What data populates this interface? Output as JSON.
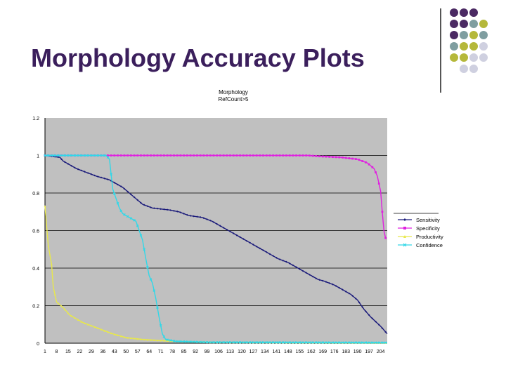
{
  "slide": {
    "title": "Morphology Accuracy Plots",
    "dot_colors": {
      "purple": "#4b2a63",
      "teal": "#7f9ea0",
      "olive": "#b5b83a",
      "lavender": "#cfd0e0"
    },
    "dot_grid": [
      [
        "purple",
        "purple",
        "purple",
        ""
      ],
      [
        "purple",
        "purple",
        "teal",
        "olive"
      ],
      [
        "purple",
        "teal",
        "olive",
        "teal"
      ],
      [
        "teal",
        "olive",
        "olive",
        "lavender"
      ],
      [
        "olive",
        "olive",
        "lavender",
        "lavender"
      ],
      [
        "",
        "lavender",
        "lavender",
        ""
      ]
    ]
  },
  "chart_data": {
    "type": "line",
    "title_lines": [
      "Morphology",
      "RefCount>5"
    ],
    "ylim": [
      0,
      1.2
    ],
    "yticks": [
      0,
      0.2,
      0.4,
      0.6,
      0.8,
      1,
      1.2
    ],
    "ytick_labels": [
      "0",
      "0.2",
      "0.4",
      "0.6",
      "0.8",
      "1",
      "1.2"
    ],
    "xlim": [
      1,
      208
    ],
    "xtick_labels": [
      "1",
      "8",
      "15",
      "22",
      "29",
      "36",
      "43",
      "50",
      "57",
      "64",
      "71",
      "78",
      "85",
      "92",
      "99",
      "106",
      "113",
      "120",
      "127",
      "134",
      "141",
      "148",
      "155",
      "162",
      "169",
      "176",
      "183",
      "190",
      "197",
      "204"
    ],
    "grid": "horizontal",
    "plot_bg": "#c0c0c0",
    "legend_position": "right",
    "series": [
      {
        "name": "Sensitivity",
        "color": "#1a1a7a",
        "marker": "diamond",
        "points": [
          [
            1,
            1
          ],
          [
            10,
            0.99
          ],
          [
            12,
            0.97
          ],
          [
            20,
            0.93
          ],
          [
            26,
            0.91
          ],
          [
            32,
            0.89
          ],
          [
            40,
            0.87
          ],
          [
            44,
            0.85
          ],
          [
            48,
            0.83
          ],
          [
            52,
            0.8
          ],
          [
            56,
            0.77
          ],
          [
            60,
            0.74
          ],
          [
            66,
            0.72
          ],
          [
            76,
            0.71
          ],
          [
            82,
            0.7
          ],
          [
            88,
            0.68
          ],
          [
            96,
            0.67
          ],
          [
            102,
            0.65
          ],
          [
            106,
            0.63
          ],
          [
            110,
            0.61
          ],
          [
            114,
            0.59
          ],
          [
            118,
            0.57
          ],
          [
            122,
            0.55
          ],
          [
            126,
            0.53
          ],
          [
            130,
            0.51
          ],
          [
            134,
            0.49
          ],
          [
            138,
            0.47
          ],
          [
            142,
            0.45
          ],
          [
            148,
            0.43
          ],
          [
            154,
            0.4
          ],
          [
            160,
            0.37
          ],
          [
            166,
            0.34
          ],
          [
            170,
            0.33
          ],
          [
            176,
            0.31
          ],
          [
            180,
            0.29
          ],
          [
            186,
            0.26
          ],
          [
            190,
            0.23
          ],
          [
            194,
            0.18
          ],
          [
            198,
            0.14
          ],
          [
            204,
            0.09
          ],
          [
            208,
            0.05
          ]
        ]
      },
      {
        "name": "Specificity",
        "color": "#e020e0",
        "marker": "square",
        "points": [
          [
            1,
            1
          ],
          [
            160,
            1
          ],
          [
            168,
            0.995
          ],
          [
            180,
            0.99
          ],
          [
            190,
            0.98
          ],
          [
            196,
            0.96
          ],
          [
            200,
            0.93
          ],
          [
            202,
            0.89
          ],
          [
            204,
            0.81
          ],
          [
            205,
            0.7
          ],
          [
            206,
            0.6
          ],
          [
            207,
            0.56
          ]
        ]
      },
      {
        "name": "Productivity",
        "color": "#e8e84a",
        "marker": "triangle",
        "points": [
          [
            1,
            0.73
          ],
          [
            3,
            0.52
          ],
          [
            5,
            0.42
          ],
          [
            6,
            0.3
          ],
          [
            8,
            0.22
          ],
          [
            12,
            0.19
          ],
          [
            16,
            0.15
          ],
          [
            20,
            0.13
          ],
          [
            24,
            0.11
          ],
          [
            30,
            0.09
          ],
          [
            36,
            0.07
          ],
          [
            42,
            0.05
          ],
          [
            50,
            0.03
          ],
          [
            60,
            0.02
          ],
          [
            70,
            0.015
          ],
          [
            80,
            0.01
          ],
          [
            100,
            0.005
          ],
          [
            150,
            0.003
          ],
          [
            208,
            0.002
          ]
        ]
      },
      {
        "name": "Confidence",
        "color": "#30d8e8",
        "marker": "cross",
        "points": [
          [
            1,
            1
          ],
          [
            38,
            1
          ],
          [
            40,
            0.98
          ],
          [
            41,
            0.9
          ],
          [
            42,
            0.82
          ],
          [
            44,
            0.77
          ],
          [
            46,
            0.72
          ],
          [
            48,
            0.69
          ],
          [
            52,
            0.67
          ],
          [
            56,
            0.65
          ],
          [
            58,
            0.6
          ],
          [
            60,
            0.55
          ],
          [
            62,
            0.45
          ],
          [
            64,
            0.36
          ],
          [
            66,
            0.32
          ],
          [
            68,
            0.24
          ],
          [
            70,
            0.14
          ],
          [
            72,
            0.05
          ],
          [
            74,
            0.02
          ],
          [
            80,
            0.01
          ],
          [
            100,
            0.005
          ],
          [
            208,
            0.003
          ]
        ]
      }
    ]
  }
}
